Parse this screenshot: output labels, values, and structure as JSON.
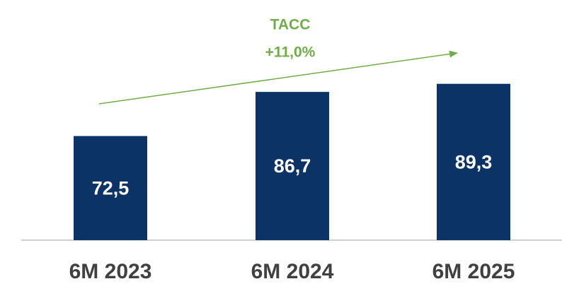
{
  "chart_data": {
    "type": "bar",
    "categories": [
      "6M 2023",
      "6M 2024",
      "6M 2025"
    ],
    "values": [
      72.5,
      86.7,
      89.3
    ],
    "value_labels": [
      "72,5",
      "86,7",
      "89,3"
    ],
    "color": "#0b3366",
    "ylim": [
      39,
      95
    ],
    "annotation": [
      "TACC",
      "+11,0%"
    ],
    "annotation_color": "#70ad47"
  }
}
